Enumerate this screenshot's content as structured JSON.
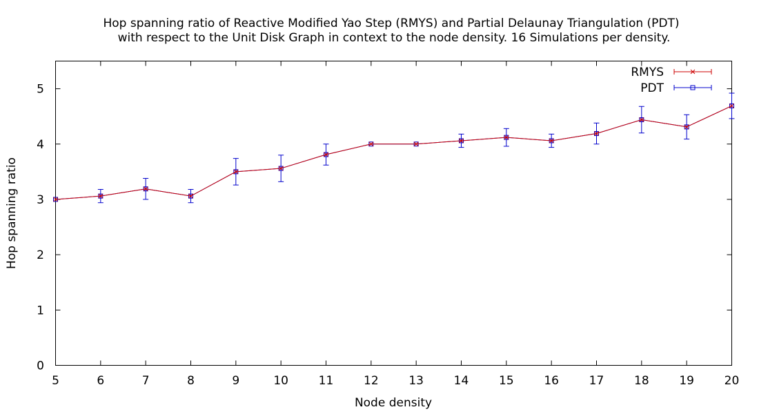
{
  "chart_data": {
    "type": "line",
    "title_lines": [
      "Hop spanning ratio of Reactive Modified Yao Step (RMYS) and Partial Delaunay Triangulation (PDT)",
      "with respect to the Unit Disk Graph in context to the node density. 16 Simulations per density."
    ],
    "xlabel": "Node density",
    "ylabel": "Hop spanning ratio",
    "xlim": [
      5,
      20
    ],
    "ylim": [
      0,
      5.5
    ],
    "x_ticks": [
      5,
      6,
      7,
      8,
      9,
      10,
      11,
      12,
      13,
      14,
      15,
      16,
      17,
      18,
      19,
      20
    ],
    "y_ticks": [
      0,
      1,
      2,
      3,
      4,
      5
    ],
    "grid": false,
    "legend_position": "top-right",
    "x": [
      5,
      6,
      7,
      8,
      9,
      10,
      11,
      12,
      13,
      14,
      15,
      16,
      17,
      18,
      19,
      20
    ],
    "series": [
      {
        "name": "RMYS",
        "color": "#cc0000",
        "marker": "x",
        "values": [
          3.0,
          3.06,
          3.19,
          3.06,
          3.5,
          3.56,
          3.81,
          4.0,
          4.0,
          4.06,
          4.12,
          4.06,
          4.19,
          4.44,
          4.31,
          4.69
        ],
        "errors": [
          0,
          0,
          0,
          0,
          0,
          0,
          0,
          0,
          0,
          0,
          0,
          0,
          0,
          0,
          0,
          0
        ]
      },
      {
        "name": "PDT",
        "color": "#0000cc",
        "marker": "square",
        "values": [
          3.0,
          3.06,
          3.19,
          3.06,
          3.5,
          3.56,
          3.81,
          4.0,
          4.0,
          4.06,
          4.12,
          4.06,
          4.19,
          4.44,
          4.31,
          4.69
        ],
        "errors": [
          0,
          0.12,
          0.19,
          0.12,
          0.24,
          0.24,
          0.19,
          0,
          0,
          0.12,
          0.16,
          0.12,
          0.19,
          0.24,
          0.22,
          0.23
        ]
      }
    ]
  }
}
